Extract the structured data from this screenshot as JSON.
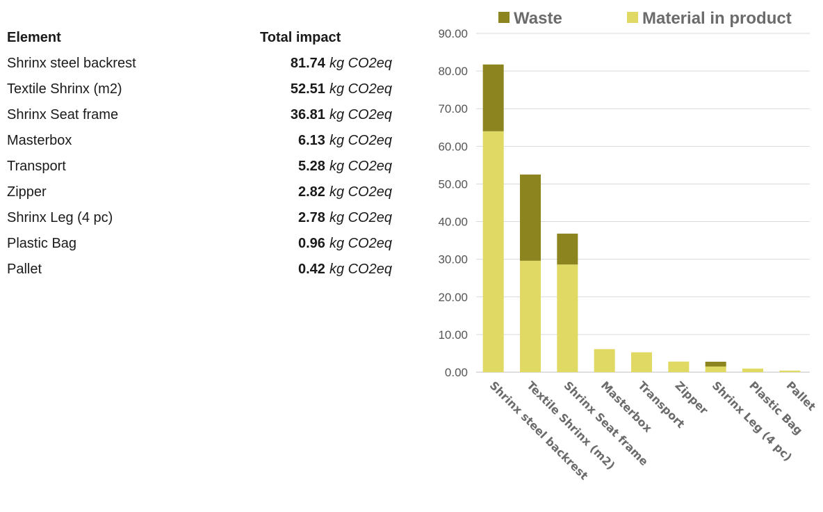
{
  "table": {
    "header_element": "Element",
    "header_impact": "Total impact",
    "unit": "kg CO2eq",
    "rows": [
      {
        "element": "Shrinx steel backrest",
        "value": "81.74"
      },
      {
        "element": "Textile Shrinx (m2)",
        "value": "52.51"
      },
      {
        "element": "Shrinx Seat frame",
        "value": "36.81"
      },
      {
        "element": "Masterbox",
        "value": "6.13"
      },
      {
        "element": "Transport",
        "value": "5.28"
      },
      {
        "element": "Zipper",
        "value": "2.82"
      },
      {
        "element": "Shrinx Leg (4 pc)",
        "value": "2.78"
      },
      {
        "element": "Plastic Bag",
        "value": "0.96"
      },
      {
        "element": "Pallet",
        "value": "0.42"
      }
    ]
  },
  "chart_data": {
    "type": "bar",
    "stacked": true,
    "categories": [
      "Shrinx steel backrest",
      "Textile Shrinx (m2)",
      "Shrinx Seat frame",
      "Masterbox",
      "Transport",
      "Zipper",
      "Shrinx Leg (4 pc)",
      "Plastic Bag",
      "Pallet"
    ],
    "series": [
      {
        "name": "Material in product",
        "color": "#e0d964",
        "values": [
          64.0,
          29.6,
          28.6,
          6.13,
          5.28,
          2.82,
          1.5,
          0.96,
          0.42
        ]
      },
      {
        "name": "Waste",
        "color": "#8b841f",
        "values": [
          17.74,
          22.91,
          8.21,
          0,
          0,
          0,
          1.28,
          0,
          0
        ]
      }
    ],
    "legend_order": [
      "Waste",
      "Material in product"
    ],
    "legend_position": "top",
    "ylim": [
      0,
      90
    ],
    "yticks": [
      "0.00",
      "10.00",
      "20.00",
      "30.00",
      "40.00",
      "50.00",
      "60.00",
      "70.00",
      "80.00",
      "90.00"
    ],
    "grid": true,
    "title": "",
    "xlabel": "",
    "ylabel": ""
  }
}
